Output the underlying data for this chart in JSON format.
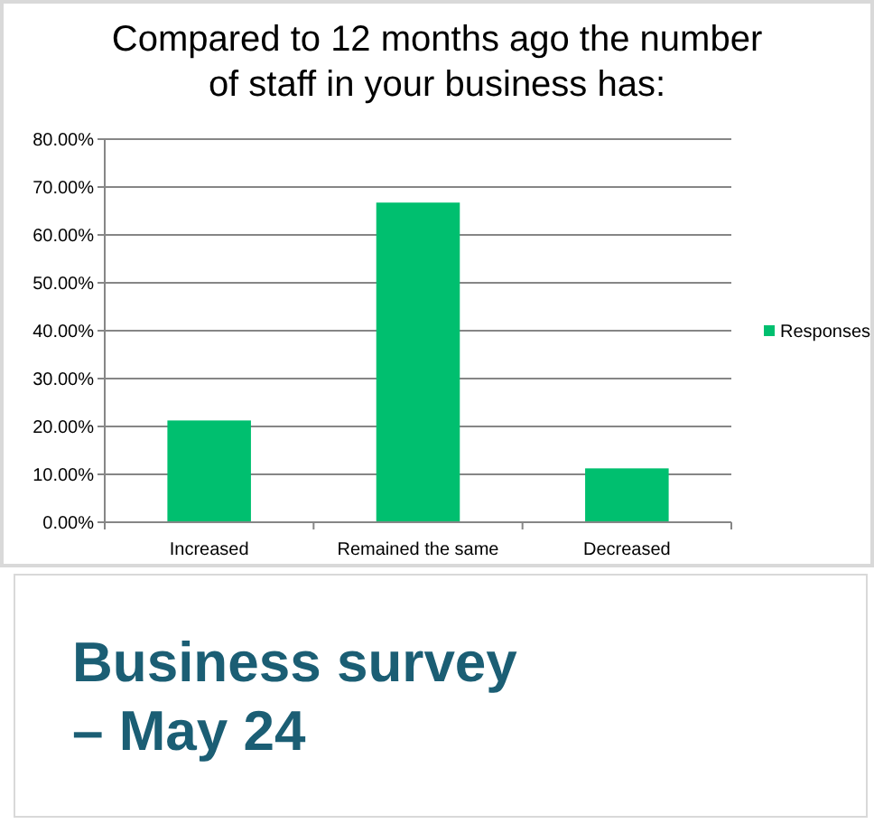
{
  "chart_data": {
    "type": "bar",
    "title": "Compared to 12 months ago the number of staff in your business has:",
    "categories": [
      "Increased",
      "Remained the same",
      "Decreased"
    ],
    "series": [
      {
        "name": "Responses",
        "color": "#00bf6f",
        "values": [
          21.25,
          66.75,
          11.25
        ]
      }
    ],
    "ylim": [
      0,
      80
    ],
    "yticks": [
      {
        "value": 0,
        "label": "0.00%"
      },
      {
        "value": 10,
        "label": "10.00%"
      },
      {
        "value": 20,
        "label": "20.00%"
      },
      {
        "value": 30,
        "label": "30.00%"
      },
      {
        "value": 40,
        "label": "40.00%"
      },
      {
        "value": 50,
        "label": "50.00%"
      },
      {
        "value": 60,
        "label": "60.00%"
      },
      {
        "value": 70,
        "label": "70.00%"
      },
      {
        "value": 80,
        "label": "80.00%"
      }
    ],
    "grid": "y",
    "legend": "right",
    "annotations": [
      "Business survey – May 24"
    ]
  }
}
